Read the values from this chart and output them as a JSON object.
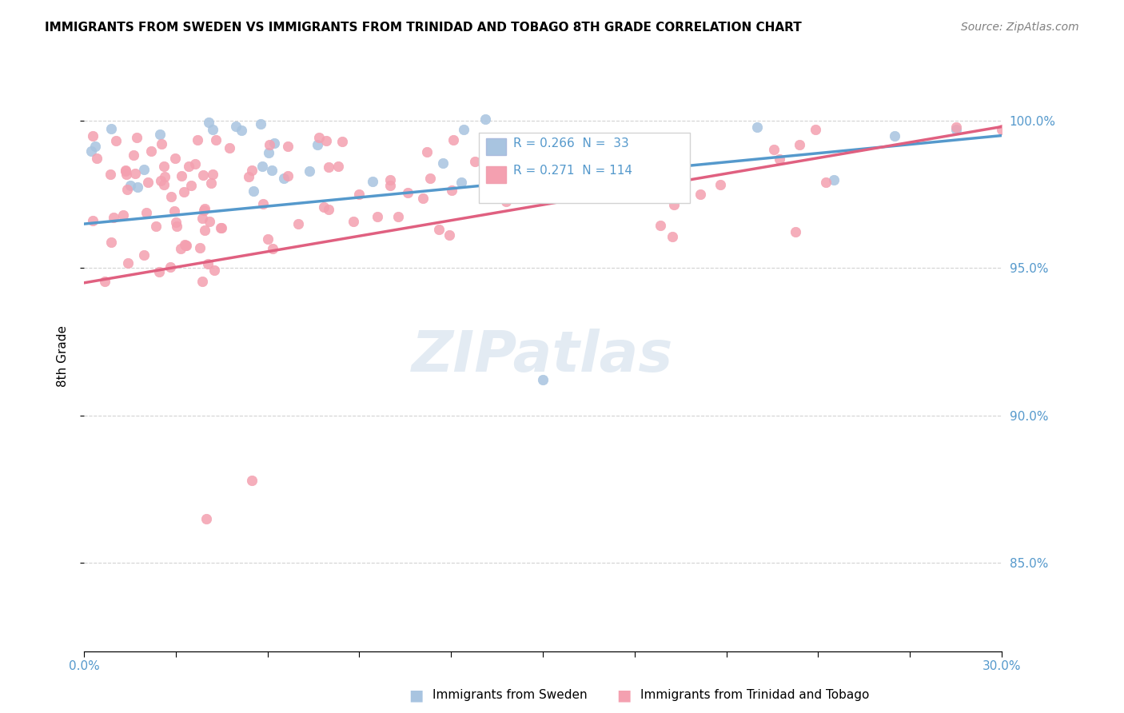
{
  "title": "IMMIGRANTS FROM SWEDEN VS IMMIGRANTS FROM TRINIDAD AND TOBAGO 8TH GRADE CORRELATION CHART",
  "source": "Source: ZipAtlas.com",
  "ylabel": "8th Grade",
  "yaxis_ticks": [
    "85.0%",
    "90.0%",
    "95.0%",
    "100.0%"
  ],
  "yaxis_tick_values": [
    0.85,
    0.9,
    0.95,
    1.0
  ],
  "xlim": [
    0.0,
    0.3
  ],
  "ylim": [
    0.82,
    1.02
  ],
  "sweden_R": 0.266,
  "sweden_N": 33,
  "trinidad_R": 0.271,
  "trinidad_N": 114,
  "sweden_color": "#a8c4e0",
  "trinidad_color": "#f4a0b0",
  "sweden_line_color": "#5599cc",
  "trinidad_line_color": "#e06080",
  "watermark_text": "ZIPatlas",
  "legend_label_sweden": "Immigrants from Sweden",
  "legend_label_trinidad": "Immigrants from Trinidad and Tobago"
}
